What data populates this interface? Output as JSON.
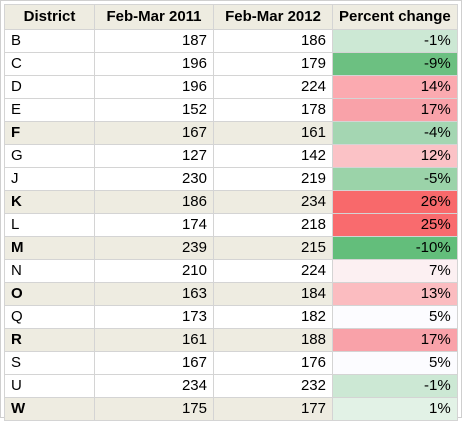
{
  "table": {
    "headers": [
      "District",
      "Feb-Mar 2011",
      "Feb-Mar 2012",
      "Percent change"
    ],
    "rows": [
      {
        "district": "B",
        "y2011": "187",
        "y2012": "186",
        "pct": "-1%",
        "pct_color": "#cce8d4",
        "shaded": false,
        "bold": false
      },
      {
        "district": "C",
        "y2011": "196",
        "y2012": "179",
        "pct": "-9%",
        "pct_color": "#6cc081",
        "shaded": false,
        "bold": false
      },
      {
        "district": "D",
        "y2011": "196",
        "y2012": "224",
        "pct": "14%",
        "pct_color": "#fbaab0",
        "shaded": false,
        "bold": false
      },
      {
        "district": "E",
        "y2011": "152",
        "y2012": "178",
        "pct": "17%",
        "pct_color": "#f9a2a9",
        "shaded": false,
        "bold": false
      },
      {
        "district": "F",
        "y2011": "167",
        "y2012": "161",
        "pct": "-4%",
        "pct_color": "#a4d6b2",
        "shaded": true,
        "bold": true
      },
      {
        "district": "G",
        "y2011": "127",
        "y2012": "142",
        "pct": "12%",
        "pct_color": "#fbc2c6",
        "shaded": false,
        "bold": false
      },
      {
        "district": "J",
        "y2011": "230",
        "y2012": "219",
        "pct": "-5%",
        "pct_color": "#9bd3a9",
        "shaded": false,
        "bold": false
      },
      {
        "district": "K",
        "y2011": "186",
        "y2012": "234",
        "pct": "26%",
        "pct_color": "#f8696b",
        "shaded": true,
        "bold": true
      },
      {
        "district": "L",
        "y2011": "174",
        "y2012": "218",
        "pct": "25%",
        "pct_color": "#f96b6e",
        "shaded": false,
        "bold": false
      },
      {
        "district": "M",
        "y2011": "239",
        "y2012": "215",
        "pct": "-10%",
        "pct_color": "#63be7b",
        "shaded": true,
        "bold": true
      },
      {
        "district": "N",
        "y2011": "210",
        "y2012": "224",
        "pct": "7%",
        "pct_color": "#fcf0f2",
        "shaded": false,
        "bold": false
      },
      {
        "district": "O",
        "y2011": "163",
        "y2012": "184",
        "pct": "13%",
        "pct_color": "#fbbcc0",
        "shaded": true,
        "bold": true
      },
      {
        "district": "Q",
        "y2011": "173",
        "y2012": "182",
        "pct": "5%",
        "pct_color": "#fcfcff",
        "shaded": false,
        "bold": false
      },
      {
        "district": "R",
        "y2011": "161",
        "y2012": "188",
        "pct": "17%",
        "pct_color": "#f9a2a9",
        "shaded": true,
        "bold": true
      },
      {
        "district": "S",
        "y2011": "167",
        "y2012": "176",
        "pct": "5%",
        "pct_color": "#fcfcff",
        "shaded": false,
        "bold": false
      },
      {
        "district": "U",
        "y2011": "234",
        "y2012": "232",
        "pct": "-1%",
        "pct_color": "#cce8d4",
        "shaded": false,
        "bold": false
      },
      {
        "district": "W",
        "y2011": "175",
        "y2012": "177",
        "pct": "1%",
        "pct_color": "#e2f2e6",
        "shaded": true,
        "bold": true
      }
    ]
  }
}
